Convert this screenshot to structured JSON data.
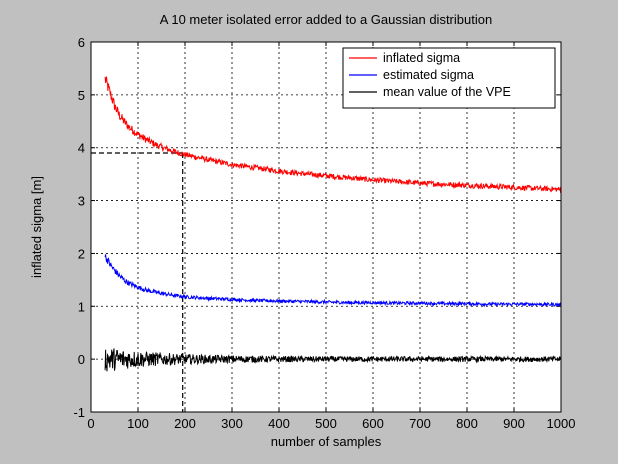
{
  "chart_data": {
    "type": "line",
    "title": "A 10 meter isolated error added to a Gaussian distribution",
    "xlabel": "number of samples",
    "ylabel": "inflated sigma [m]",
    "xlim": [
      0,
      1000
    ],
    "ylim": [
      -1,
      6
    ],
    "xticks": [
      "0",
      "100",
      "200",
      "300",
      "400",
      "500",
      "600",
      "700",
      "800",
      "900",
      "1000"
    ],
    "yticks": [
      "-1",
      "0",
      "1",
      "2",
      "3",
      "4",
      "5",
      "6"
    ],
    "grid": true,
    "legend_position": "top-right",
    "series": [
      {
        "name": "inflated sigma",
        "color": "#ff0000",
        "x": [
          30,
          40,
          50,
          60,
          70,
          80,
          90,
          100,
          120,
          140,
          160,
          180,
          200,
          250,
          300,
          350,
          400,
          450,
          500,
          550,
          600,
          650,
          700,
          750,
          800,
          850,
          900,
          950,
          1000
        ],
        "y": [
          5.3,
          5.05,
          4.8,
          4.62,
          4.5,
          4.4,
          4.32,
          4.25,
          4.14,
          4.05,
          3.98,
          3.92,
          3.87,
          3.77,
          3.68,
          3.62,
          3.56,
          3.51,
          3.47,
          3.43,
          3.39,
          3.36,
          3.33,
          3.31,
          3.29,
          3.27,
          3.25,
          3.23,
          3.21
        ],
        "noise": 0.05
      },
      {
        "name": "estimated sigma",
        "color": "#0000ff",
        "x": [
          30,
          40,
          50,
          60,
          70,
          80,
          90,
          100,
          120,
          140,
          160,
          180,
          200,
          250,
          300,
          350,
          400,
          450,
          500,
          550,
          600,
          650,
          700,
          750,
          800,
          850,
          900,
          950,
          1000
        ],
        "y": [
          1.95,
          1.8,
          1.68,
          1.58,
          1.5,
          1.44,
          1.4,
          1.36,
          1.3,
          1.26,
          1.23,
          1.2,
          1.18,
          1.15,
          1.13,
          1.11,
          1.1,
          1.09,
          1.08,
          1.07,
          1.07,
          1.06,
          1.06,
          1.05,
          1.05,
          1.04,
          1.04,
          1.04,
          1.03
        ],
        "noise": 0.03
      },
      {
        "name": "mean value of the VPE",
        "color": "#000000",
        "x": [
          30,
          100,
          200,
          300,
          400,
          500,
          600,
          700,
          800,
          900,
          1000
        ],
        "y": [
          0.0,
          0.0,
          0.0,
          0.0,
          0.0,
          0.0,
          0.0,
          0.0,
          0.0,
          0.0,
          0.0
        ],
        "noise_start": 0.25,
        "noise_end": 0.05
      }
    ],
    "annotation_lines": [
      {
        "style": "dashed",
        "color": "#000000",
        "points": [
          [
            0,
            3.9
          ],
          [
            195,
            3.9
          ]
        ]
      },
      {
        "style": "dashed",
        "color": "#000000",
        "points": [
          [
            195,
            3.9
          ],
          [
            195,
            -1
          ]
        ]
      }
    ]
  }
}
